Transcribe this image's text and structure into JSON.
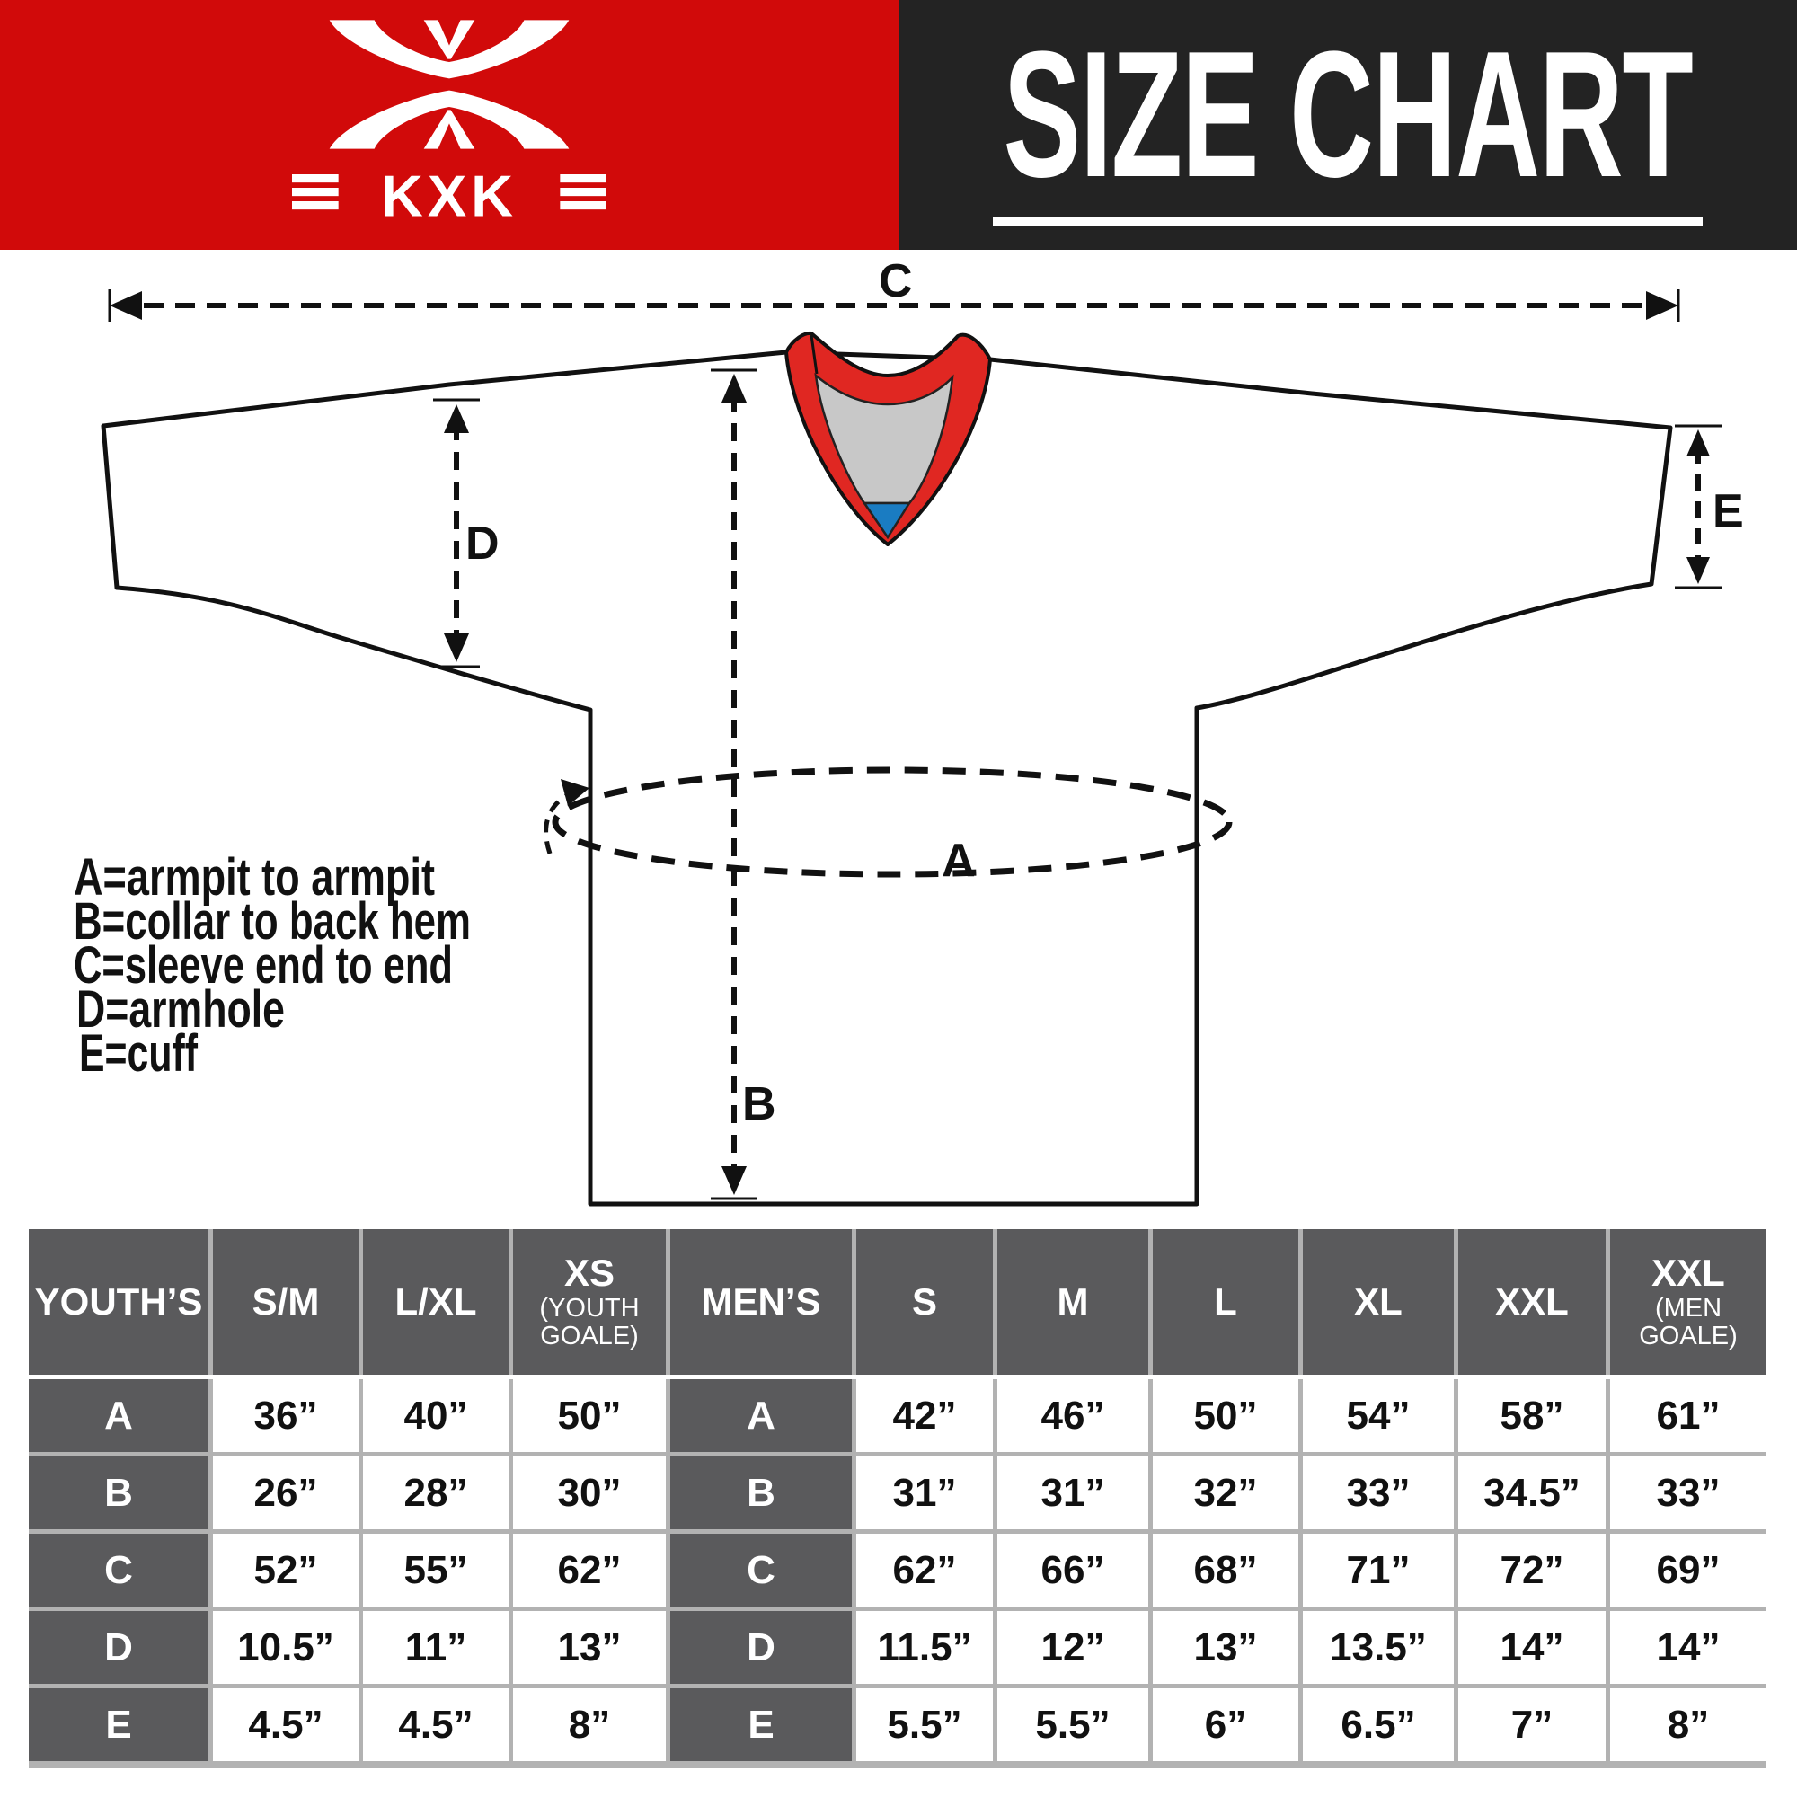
{
  "header": {
    "brand": "KXK",
    "title": "SIZE CHART",
    "colors": {
      "left_background": "#d10a0a",
      "right_background": "#232323"
    }
  },
  "diagram": {
    "dimension_labels": {
      "A": "A",
      "B": "B",
      "C": "C",
      "D": "D",
      "E": "E"
    },
    "legend": [
      "A=armpit to armpit",
      "B=collar to back hem",
      "C=sleeve end to end",
      "D=armhole",
      "E=cuff"
    ],
    "colors": {
      "collar_band": "#e02722",
      "collar_inner": "#c8c8c8",
      "collar_tip": "#1a7cc2",
      "outline": "#111111"
    }
  },
  "size_table": {
    "row_labels": [
      "A",
      "B",
      "C",
      "D",
      "E"
    ],
    "columns": [
      {
        "label": "YOUTH’S",
        "type": "label"
      },
      {
        "label": "S/M",
        "values": [
          "36”",
          "26”",
          "52”",
          "10.5”",
          "4.5”"
        ]
      },
      {
        "label": "L/XL",
        "values": [
          "40”",
          "28”",
          "55”",
          "11”",
          "4.5”"
        ]
      },
      {
        "label": "XS",
        "sub": "(YOUTH GOALE)",
        "values": [
          "50”",
          "30”",
          "62”",
          "13”",
          "8”"
        ]
      },
      {
        "label": "MEN’S",
        "type": "label"
      },
      {
        "label": "S",
        "values": [
          "42”",
          "31”",
          "62”",
          "11.5”",
          "5.5”"
        ]
      },
      {
        "label": "M",
        "values": [
          "46”",
          "31”",
          "66”",
          "12”",
          "5.5”"
        ]
      },
      {
        "label": "L",
        "values": [
          "50”",
          "32”",
          "68”",
          "13”",
          "6”"
        ]
      },
      {
        "label": "XL",
        "values": [
          "54”",
          "33”",
          "71”",
          "13.5”",
          "6.5”"
        ]
      },
      {
        "label": "XXL",
        "values": [
          "58”",
          "34.5”",
          "72”",
          "14”",
          "7”"
        ]
      },
      {
        "label": "XXL",
        "sub": "(MEN GOALE)",
        "values": [
          "61”",
          "33”",
          "69”",
          "14”",
          "8”"
        ]
      }
    ],
    "colors": {
      "header_cell": "#5a5a5c",
      "grid_gap": "#b2b2b2",
      "value_cell": "#ffffff"
    }
  }
}
